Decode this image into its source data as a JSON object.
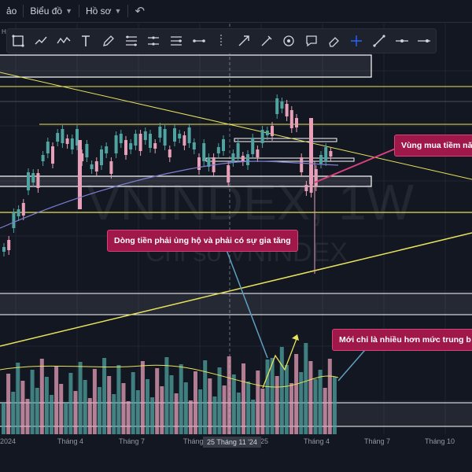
{
  "menu": {
    "item1": "ảo",
    "chart_menu": "Biểu đồ",
    "profile_menu": "Hồ sơ",
    "undo_icon": "undo-icon"
  },
  "watermark": {
    "symbol": "VNINDEX, 1W",
    "name": "Chỉ số VNINDEX"
  },
  "side_label": "H",
  "annotations": {
    "buy_zone": "Vùng mua tiềm nă",
    "money_flow": "Dòng tiền phải ủng hộ và phải có sự gia tăng",
    "volume_note": "Mới chỉ là nhiều hơn mức trung b"
  },
  "time_axis": {
    "labels": [
      "2024",
      "Tháng 4",
      "Tháng 7",
      "Tháng",
      "25",
      "Tháng 4",
      "Tháng 7",
      "Tháng 10"
    ],
    "crosshair": "25 Tháng 11 '24"
  },
  "colors": {
    "background": "#131722",
    "up": "#4fa3a0",
    "down": "#e8a0b8",
    "zone": "#ffffff",
    "trendline": "#e8e35a",
    "callout": "#a0184a"
  },
  "toolbar_icons": [
    "square-icon",
    "trend-icon",
    "wave-icon",
    "text-icon",
    "brush-icon",
    "fib-icon",
    "channel-icon",
    "pitchfork-icon",
    "range-icon",
    "ray-icon",
    "cursor-icon",
    "arrow-icon",
    "circle-icon",
    "comment-icon",
    "eraser-icon",
    "crosshair-icon",
    "line-icon",
    "hline-icon",
    "extend-line-icon"
  ]
}
